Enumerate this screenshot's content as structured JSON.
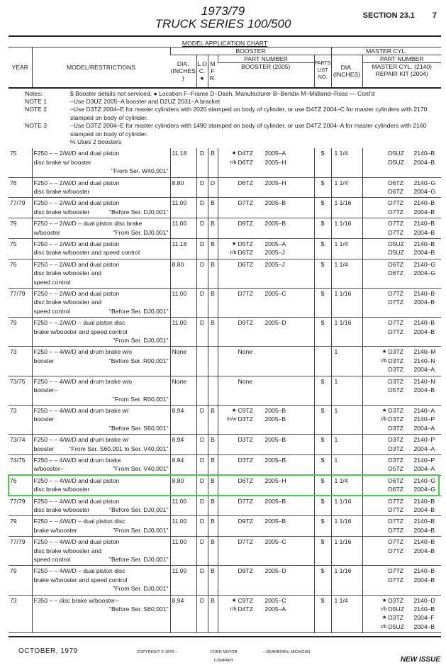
{
  "header": {
    "years": "1973/79",
    "series": "TRUCK  SERIES  100/500",
    "section": "SECTION 23.1",
    "page": "7"
  },
  "chart_title": "MODEL APPLICATION CHART",
  "columns": {
    "year": "YEAR",
    "model": "MODEL/RESTRICTIONS",
    "booster": "BOOSTER",
    "dia": "DIA.",
    "dia_unit": "(INCHES)",
    "loc": "L O C. ●",
    "mfr": "M F R.",
    "part_number": "PART NUMBER",
    "booster_part": "BOOSTER (2005)",
    "parts_list": "PARTS LIST NO.",
    "master_cyl": "MASTER CYL.",
    "mc_dia": "DIA.",
    "mc_dia_unit": "(INCHES)",
    "mc_part_number": "PART NUMBER",
    "mc_part": "MASTER CYL. (2140)",
    "repair_kit": "REPAIR KIT (2004)"
  },
  "notes": [
    {
      "label": "Notes:",
      "text": "$ Booster details not serviced, ● Location F–Frame D–Dash, Manufacturer B–Bendix M–Midland–Ross — Cont'd"
    },
    {
      "label": "NOTE 1",
      "text": "–Use D3UZ 2005–A booster and D2UZ 2031–A bracket"
    },
    {
      "label": "NOTE 2",
      "text": "–Use D3TZ 2004–E for master cylinders with 2020 stamped on body of cylinder, or use D4TZ 2004–C for master cylinders with 2170 stamped on body of cylinder."
    },
    {
      "label": "NOTE 3",
      "text": "–Use D3TZ 2004–E for master cylinders with 1490 stamped on body of cylinder, or use D4TZ 2004–A for master cylinders with 2160 stamped on body of cylinder."
    },
    {
      "label": "",
      "text": "% Uses 2 boosters"
    }
  ],
  "rows": [
    {
      "year": "75",
      "model": [
        [
          "F250 – – 2/W/D and dual piston",
          ""
        ],
        [
          "disc brake w/ booster",
          ""
        ],
        [
          "",
          "\"From Ser. W40,001\""
        ]
      ],
      "dia": "11.18",
      "loc": "D",
      "mfr": "B",
      "booster": [
        [
          "★",
          "D4TZ",
          "2005–A"
        ],
        [
          "r/b",
          "D6TZ",
          "2005–H"
        ]
      ],
      "plist": "$",
      "mcdia": "1 1/4",
      "mc": [
        [
          "",
          "D5UZ",
          "2140–B"
        ],
        [
          "",
          "D5UZ",
          "2004–B"
        ]
      ]
    },
    {
      "year": "76",
      "model": [
        [
          "F250 – – 2/W/D and dual piston",
          ""
        ],
        [
          "disc brake w/booster",
          ""
        ]
      ],
      "dia": "8.80",
      "loc": "D",
      "mfr": "D",
      "booster": [
        [
          "",
          "D6TZ",
          "2005–H"
        ]
      ],
      "plist": "$",
      "mcdia": "1 1/4",
      "mc": [
        [
          "",
          "D6TZ",
          "2140–G"
        ],
        [
          "",
          "D6TZ",
          "2004–G"
        ]
      ]
    },
    {
      "year": "77/79",
      "model": [
        [
          "F250 – – 2/W/D and dual piston",
          ""
        ],
        [
          "disc brake w/booster",
          "\"Before Ser. DJ0,001\""
        ]
      ],
      "dia": "11.00",
      "loc": "D",
      "mfr": "B",
      "booster": [
        [
          "",
          "D7TZ",
          "2005–B"
        ]
      ],
      "plist": "$",
      "mcdia": "1 1/16",
      "mc": [
        [
          "",
          "D7TZ",
          "2140–B"
        ],
        [
          "",
          "D7TZ",
          "2004–B"
        ]
      ]
    },
    {
      "year": "79",
      "model": [
        [
          "F250 – – 2/W/D – dual piston disc brake",
          ""
        ],
        [
          "w/booster",
          "\"From Ser. DJ0,001\""
        ]
      ],
      "dia": "11.00",
      "loc": "D",
      "mfr": "B",
      "booster": [
        [
          "",
          "D9TZ",
          "2005–B"
        ]
      ],
      "plist": "$",
      "mcdia": "1 1/16",
      "mc": [
        [
          "",
          "D7TZ",
          "2140–B"
        ],
        [
          "",
          "D7TZ",
          "2004–B"
        ]
      ]
    },
    {
      "year": "75",
      "model": [
        [
          "F250 – – 2/W/D and dual piston",
          ""
        ],
        [
          "disc brake w/booster and speed control",
          ""
        ]
      ],
      "dia": "11.18",
      "loc": "D",
      "mfr": "B",
      "booster": [
        [
          "★",
          "D5TZ",
          "2005–A"
        ],
        [
          "r/b",
          "D6TZ",
          "2005–J"
        ]
      ],
      "plist": "$",
      "mcdia": "1 1/4",
      "mc": [
        [
          "",
          "D5UZ",
          "2140–B"
        ],
        [
          "",
          "D5UZ",
          "2004–B"
        ]
      ]
    },
    {
      "year": "76",
      "model": [
        [
          "F250 – – 2/W/D and dual piston",
          ""
        ],
        [
          "disc brake w/booster and",
          ""
        ],
        [
          "speed control",
          ""
        ]
      ],
      "dia": "8.80",
      "loc": "D",
      "mfr": "B",
      "booster": [
        [
          "",
          "D6TZ",
          "2005–J"
        ]
      ],
      "plist": "$",
      "mcdia": "1 1/4",
      "mc": [
        [
          "",
          "D6TZ",
          "2140–G"
        ],
        [
          "",
          "D6TZ",
          "2004–G"
        ]
      ]
    },
    {
      "year": "77/79",
      "model": [
        [
          "F250 – – 2/W/D and dual piston",
          ""
        ],
        [
          "disc brake w/booster and",
          ""
        ],
        [
          "speed control",
          "\"Before Ser. DJ0,001\""
        ]
      ],
      "dia": "11.00",
      "loc": "D",
      "mfr": "B",
      "booster": [
        [
          "",
          "D7TZ",
          "2005–C"
        ]
      ],
      "plist": "$",
      "mcdia": "1 1/16",
      "mc": [
        [
          "",
          "D7TZ",
          "2140–B"
        ],
        [
          "",
          "D7TZ",
          "2004–B"
        ]
      ]
    },
    {
      "year": "79",
      "model": [
        [
          "F250 – – 2/W/D – dual piston disc",
          ""
        ],
        [
          "brake w/booster and speed control",
          ""
        ],
        [
          "",
          "\"From Ser. DJ0,001\""
        ]
      ],
      "dia": "11.00",
      "loc": "D",
      "mfr": "B",
      "booster": [
        [
          "",
          "D9TZ",
          "2005–D"
        ]
      ],
      "plist": "$",
      "mcdia": "1 1/16",
      "mc": [
        [
          "",
          "D7TZ",
          "2140–B"
        ],
        [
          "",
          "D7TZ",
          "2004–B"
        ]
      ]
    },
    {
      "year": "73",
      "model": [
        [
          "F250 – – 4/W/D and drum brake w/o",
          ""
        ],
        [
          "",
          ""
        ],
        [
          "booster",
          "\"Before Ser. R00,001\""
        ]
      ],
      "dia": "None",
      "loc": "",
      "mfr": "",
      "booster": [
        [
          "",
          "None",
          ""
        ]
      ],
      "plist": "",
      "mcdia": "1",
      "mc": [
        [
          "★",
          "D3TZ",
          "2140–M"
        ],
        [
          "r/b",
          "D3TZ",
          "2140–N"
        ],
        [
          "",
          "D3TZ",
          "2004–A"
        ]
      ]
    },
    {
      "year": "73/75",
      "model": [
        [
          "F250 – – 4/W/D and drum brake w/o",
          ""
        ],
        [
          "booster–",
          ""
        ],
        [
          "",
          "\"From Ser. R00,001\""
        ]
      ],
      "dia": "None",
      "loc": "",
      "mfr": "",
      "booster": [
        [
          "",
          "None",
          ""
        ]
      ],
      "plist": "$",
      "mcdia": "1",
      "mc": [
        [
          "",
          "D3TZ",
          "2140–N"
        ],
        [
          "",
          "D5TZ",
          "2004–B"
        ]
      ]
    },
    {
      "year": "73",
      "model": [
        [
          "F250 – – 4/W/D and drum brake w/",
          ""
        ],
        [
          "booster",
          ""
        ],
        [
          "",
          "\"Before Ser. S60,001\""
        ]
      ],
      "dia": "8.94",
      "loc": "D",
      "mfr": "B",
      "booster": [
        [
          "★",
          "C9TZ",
          "2005–B"
        ],
        [
          "m/w",
          "D3TZ",
          "2005–B"
        ]
      ],
      "plist": "$",
      "mcdia": "1",
      "mc": [
        [
          "★",
          "D3TZ",
          "2140–A"
        ],
        [
          "r/b",
          "D3TZ",
          "2140–P"
        ],
        [
          "",
          "D3TZ",
          "2004–A"
        ]
      ]
    },
    {
      "year": "73/74",
      "model": [
        [
          "F250 – – 4/W/D and drum brake w/",
          ""
        ],
        [
          "booster",
          "\"From Ser. S60,001 to Ser. V40,001\""
        ]
      ],
      "dia": "8.94",
      "loc": "D",
      "mfr": "B",
      "booster": [
        [
          "",
          "D3TZ",
          "2005–B"
        ]
      ],
      "plist": "$",
      "mcdia": "1",
      "mc": [
        [
          "",
          "D3TZ",
          "2140–P"
        ],
        [
          "",
          "D3TZ",
          "2004–A"
        ]
      ]
    },
    {
      "year": "74/75",
      "model": [
        [
          "F250 – – 4/W/D and drum brake",
          ""
        ],
        [
          "w/booster–",
          "\"From Ser. V40,001\""
        ]
      ],
      "dia": "8.94",
      "loc": "D",
      "mfr": "B",
      "booster": [
        [
          "",
          "D3TZ",
          "2005–B"
        ]
      ],
      "plist": "$",
      "mcdia": "1",
      "mc": [
        [
          "",
          "D3TZ",
          "2140–P"
        ],
        [
          "",
          "D5TZ",
          "2004–A"
        ]
      ]
    },
    {
      "year": "76",
      "model": [
        [
          "F250 – – 4/W/D and dual piston",
          ""
        ],
        [
          "disc brake w/booster",
          ""
        ]
      ],
      "dia": "8.80",
      "loc": "D",
      "mfr": "B",
      "booster": [
        [
          "",
          "D6TZ",
          "2005–H"
        ]
      ],
      "plist": "$",
      "mcdia": "1 1/4",
      "mc": [
        [
          "",
          "D6TZ",
          "2140–G"
        ],
        [
          "",
          "D6TZ",
          "2004–G"
        ]
      ]
    },
    {
      "year": "77/79",
      "model": [
        [
          "F250 – – 4/W/D and dual piston",
          ""
        ],
        [
          "disc brake w/booster",
          "\"Before Ser. DJ0,001\""
        ]
      ],
      "dia": "11.00",
      "loc": "D",
      "mfr": "B",
      "booster": [
        [
          "",
          "D7TZ",
          "2005–B"
        ]
      ],
      "plist": "$",
      "mcdia": "1 1/16",
      "mc": [
        [
          "",
          "D7TZ",
          "2140–B"
        ],
        [
          "",
          "D7TZ",
          "2004–B"
        ]
      ]
    },
    {
      "year": "79",
      "model": [
        [
          "F250 – – 4/W/D – dual piston disc",
          ""
        ],
        [
          "brake w/booster",
          "\"From Ser. DJ0,001\""
        ]
      ],
      "dia": "11.00",
      "loc": "D",
      "mfr": "B",
      "booster": [
        [
          "",
          "D9TZ",
          "2005–B"
        ]
      ],
      "plist": "$",
      "mcdia": "1 1/16",
      "mc": [
        [
          "",
          "D7TZ",
          "2140–B"
        ],
        [
          "",
          "D7TZ",
          "2004–B"
        ]
      ]
    },
    {
      "year": "77/79",
      "model": [
        [
          "F250 – – 4/W/D and dual piston",
          ""
        ],
        [
          "disc brake w/booster and",
          ""
        ],
        [
          "speed control",
          "\"Before Ser. DJ0,001\""
        ]
      ],
      "dia": "11.00",
      "loc": "D",
      "mfr": "B",
      "booster": [
        [
          "",
          "D7TZ",
          "2005–C"
        ]
      ],
      "plist": "$",
      "mcdia": "1 1/16",
      "mc": [
        [
          "",
          "D7TZ",
          "2140–B"
        ],
        [
          "",
          "D7TZ",
          "2004–B"
        ]
      ]
    },
    {
      "year": "79",
      "model": [
        [
          "F250 – – 4/W/D – dual piston disc",
          ""
        ],
        [
          "brake w/booster and speed control",
          ""
        ],
        [
          "",
          "\"From Ser. DJ0,001\""
        ]
      ],
      "dia": "11.00",
      "loc": "D",
      "mfr": "B",
      "booster": [
        [
          "",
          "D9TZ",
          "2005–D"
        ]
      ],
      "plist": "$",
      "mcdia": "1 1/16",
      "mc": [
        [
          "",
          "D7TZ",
          "2140–B"
        ],
        [
          "",
          "D7TZ",
          "2004–B"
        ]
      ]
    },
    {
      "year": "73",
      "model": [
        [
          "F350 – – disc brake w/booster–",
          ""
        ],
        [
          "",
          ""
        ],
        [
          "",
          "\"Before Ser. S60,001\""
        ],
        [
          "",
          ""
        ]
      ],
      "dia": "8.94",
      "loc": "D",
      "mfr": "B",
      "booster": [
        [
          "★",
          "C9TZ",
          "2005–C"
        ],
        [
          "",
          "",
          ""
        ],
        [
          "r/b",
          "D4TZ",
          "2005–A"
        ]
      ],
      "plist": "$",
      "mcdia": "1 1/4",
      "mc": [
        [
          "★",
          "D3TZ",
          "2140–D"
        ],
        [
          "r/b",
          "D5UZ",
          "2140–B"
        ],
        [
          "★",
          "D3TZ",
          "2004–F"
        ],
        [
          "r/b",
          "D5UZ",
          "2004–B"
        ]
      ]
    }
  ],
  "footer": {
    "date": "OCTOBER, 1979",
    "copyright": "COPYRIGHT © 1979—",
    "company1": "FORD MOTOR",
    "company2": "COMPANY",
    "location": "—DEARBORN, MICHIGAN",
    "issue": "NEW ISSUE"
  },
  "highlight_color": "#3fd33f"
}
